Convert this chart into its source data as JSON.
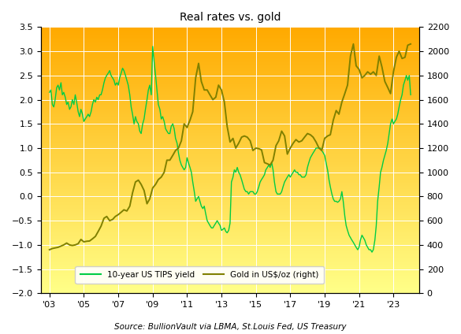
{
  "title": "Real rates vs. gold",
  "source": "Source: BullionVault via LBMA, St.Louis Fed, US Treasury",
  "legend_tips": "10-year US TIPS yield",
  "legend_gold": "Gold in US$/oz (right)",
  "tips_color": "#00cc44",
  "gold_color": "#808000",
  "ylim_left": [
    -2.0,
    3.5
  ],
  "ylim_right": [
    0,
    2200
  ],
  "yticks_left": [
    -2.0,
    -1.5,
    -1.0,
    -0.5,
    0.0,
    0.5,
    1.0,
    1.5,
    2.0,
    2.5,
    3.0,
    3.5
  ],
  "yticks_right": [
    0,
    200,
    400,
    600,
    800,
    1000,
    1200,
    1400,
    1600,
    1800,
    2000,
    2200
  ],
  "xtick_years": [
    2003,
    2005,
    2007,
    2009,
    2011,
    2013,
    2015,
    2017,
    2019,
    2021,
    2023
  ],
  "xtick_labels": [
    "'03",
    "'05",
    "'07",
    "'09",
    "'11",
    "'13",
    "'15",
    "'17",
    "'19",
    "'21",
    "'23"
  ],
  "background_top_color": "#FFAA00",
  "background_bottom_color": "#FFFF88",
  "xmin": 2002.5,
  "xmax": 2024.5,
  "tips_data": [
    [
      2003.0,
      2.15
    ],
    [
      2003.08,
      2.2
    ],
    [
      2003.17,
      1.9
    ],
    [
      2003.25,
      1.85
    ],
    [
      2003.33,
      2.0
    ],
    [
      2003.42,
      2.25
    ],
    [
      2003.5,
      2.3
    ],
    [
      2003.58,
      2.2
    ],
    [
      2003.67,
      2.35
    ],
    [
      2003.75,
      2.1
    ],
    [
      2003.83,
      2.15
    ],
    [
      2003.92,
      2.05
    ],
    [
      2004.0,
      1.9
    ],
    [
      2004.08,
      1.95
    ],
    [
      2004.17,
      1.8
    ],
    [
      2004.25,
      1.85
    ],
    [
      2004.33,
      2.0
    ],
    [
      2004.42,
      1.9
    ],
    [
      2004.5,
      2.1
    ],
    [
      2004.58,
      1.95
    ],
    [
      2004.67,
      1.75
    ],
    [
      2004.75,
      1.65
    ],
    [
      2004.83,
      1.8
    ],
    [
      2004.92,
      1.7
    ],
    [
      2005.0,
      1.55
    ],
    [
      2005.08,
      1.6
    ],
    [
      2005.17,
      1.65
    ],
    [
      2005.25,
      1.7
    ],
    [
      2005.33,
      1.65
    ],
    [
      2005.42,
      1.75
    ],
    [
      2005.5,
      1.9
    ],
    [
      2005.58,
      2.0
    ],
    [
      2005.67,
      1.95
    ],
    [
      2005.75,
      2.05
    ],
    [
      2005.83,
      2.0
    ],
    [
      2005.92,
      2.1
    ],
    [
      2006.0,
      2.1
    ],
    [
      2006.08,
      2.2
    ],
    [
      2006.17,
      2.35
    ],
    [
      2006.25,
      2.45
    ],
    [
      2006.33,
      2.5
    ],
    [
      2006.42,
      2.55
    ],
    [
      2006.5,
      2.6
    ],
    [
      2006.58,
      2.5
    ],
    [
      2006.67,
      2.45
    ],
    [
      2006.75,
      2.4
    ],
    [
      2006.83,
      2.3
    ],
    [
      2006.92,
      2.35
    ],
    [
      2007.0,
      2.3
    ],
    [
      2007.08,
      2.45
    ],
    [
      2007.17,
      2.55
    ],
    [
      2007.25,
      2.65
    ],
    [
      2007.33,
      2.6
    ],
    [
      2007.42,
      2.5
    ],
    [
      2007.5,
      2.4
    ],
    [
      2007.58,
      2.3
    ],
    [
      2007.67,
      2.1
    ],
    [
      2007.75,
      1.85
    ],
    [
      2007.83,
      1.7
    ],
    [
      2007.92,
      1.5
    ],
    [
      2008.0,
      1.65
    ],
    [
      2008.08,
      1.55
    ],
    [
      2008.17,
      1.5
    ],
    [
      2008.25,
      1.35
    ],
    [
      2008.33,
      1.3
    ],
    [
      2008.42,
      1.5
    ],
    [
      2008.5,
      1.6
    ],
    [
      2008.58,
      1.8
    ],
    [
      2008.67,
      2.0
    ],
    [
      2008.75,
      2.2
    ],
    [
      2008.83,
      2.3
    ],
    [
      2008.92,
      2.1
    ],
    [
      2009.0,
      3.1
    ],
    [
      2009.08,
      2.8
    ],
    [
      2009.17,
      2.5
    ],
    [
      2009.25,
      2.2
    ],
    [
      2009.33,
      1.9
    ],
    [
      2009.42,
      1.8
    ],
    [
      2009.5,
      1.6
    ],
    [
      2009.58,
      1.65
    ],
    [
      2009.67,
      1.55
    ],
    [
      2009.75,
      1.4
    ],
    [
      2009.83,
      1.35
    ],
    [
      2009.92,
      1.3
    ],
    [
      2010.0,
      1.3
    ],
    [
      2010.08,
      1.45
    ],
    [
      2010.17,
      1.5
    ],
    [
      2010.25,
      1.4
    ],
    [
      2010.33,
      1.2
    ],
    [
      2010.42,
      1.1
    ],
    [
      2010.5,
      0.9
    ],
    [
      2010.58,
      0.75
    ],
    [
      2010.67,
      0.65
    ],
    [
      2010.75,
      0.6
    ],
    [
      2010.83,
      0.55
    ],
    [
      2010.92,
      0.6
    ],
    [
      2011.0,
      0.8
    ],
    [
      2011.08,
      0.7
    ],
    [
      2011.17,
      0.6
    ],
    [
      2011.25,
      0.5
    ],
    [
      2011.33,
      0.3
    ],
    [
      2011.42,
      0.1
    ],
    [
      2011.5,
      -0.1
    ],
    [
      2011.58,
      -0.05
    ],
    [
      2011.67,
      0.0
    ],
    [
      2011.75,
      -0.1
    ],
    [
      2011.83,
      -0.2
    ],
    [
      2011.92,
      -0.25
    ],
    [
      2012.0,
      -0.2
    ],
    [
      2012.08,
      -0.35
    ],
    [
      2012.17,
      -0.5
    ],
    [
      2012.25,
      -0.55
    ],
    [
      2012.33,
      -0.6
    ],
    [
      2012.42,
      -0.65
    ],
    [
      2012.5,
      -0.65
    ],
    [
      2012.58,
      -0.6
    ],
    [
      2012.67,
      -0.55
    ],
    [
      2012.75,
      -0.5
    ],
    [
      2012.83,
      -0.55
    ],
    [
      2012.92,
      -0.6
    ],
    [
      2013.0,
      -0.7
    ],
    [
      2013.08,
      -0.68
    ],
    [
      2013.17,
      -0.65
    ],
    [
      2013.25,
      -0.72
    ],
    [
      2013.33,
      -0.75
    ],
    [
      2013.42,
      -0.7
    ],
    [
      2013.5,
      -0.55
    ],
    [
      2013.58,
      0.3
    ],
    [
      2013.67,
      0.4
    ],
    [
      2013.75,
      0.55
    ],
    [
      2013.83,
      0.5
    ],
    [
      2013.92,
      0.6
    ],
    [
      2014.0,
      0.5
    ],
    [
      2014.08,
      0.45
    ],
    [
      2014.17,
      0.35
    ],
    [
      2014.25,
      0.25
    ],
    [
      2014.33,
      0.15
    ],
    [
      2014.42,
      0.1
    ],
    [
      2014.5,
      0.1
    ],
    [
      2014.58,
      0.05
    ],
    [
      2014.67,
      0.1
    ],
    [
      2014.75,
      0.1
    ],
    [
      2014.83,
      0.1
    ],
    [
      2014.92,
      0.05
    ],
    [
      2015.0,
      0.05
    ],
    [
      2015.08,
      0.1
    ],
    [
      2015.17,
      0.2
    ],
    [
      2015.25,
      0.3
    ],
    [
      2015.33,
      0.35
    ],
    [
      2015.42,
      0.4
    ],
    [
      2015.5,
      0.45
    ],
    [
      2015.58,
      0.55
    ],
    [
      2015.67,
      0.6
    ],
    [
      2015.75,
      0.65
    ],
    [
      2015.83,
      0.6
    ],
    [
      2015.92,
      0.7
    ],
    [
      2016.0,
      0.55
    ],
    [
      2016.08,
      0.3
    ],
    [
      2016.17,
      0.1
    ],
    [
      2016.25,
      0.05
    ],
    [
      2016.33,
      0.05
    ],
    [
      2016.42,
      0.05
    ],
    [
      2016.5,
      0.1
    ],
    [
      2016.58,
      0.2
    ],
    [
      2016.67,
      0.3
    ],
    [
      2016.75,
      0.35
    ],
    [
      2016.83,
      0.4
    ],
    [
      2016.92,
      0.45
    ],
    [
      2017.0,
      0.4
    ],
    [
      2017.08,
      0.45
    ],
    [
      2017.17,
      0.5
    ],
    [
      2017.25,
      0.55
    ],
    [
      2017.33,
      0.5
    ],
    [
      2017.42,
      0.5
    ],
    [
      2017.5,
      0.45
    ],
    [
      2017.58,
      0.45
    ],
    [
      2017.67,
      0.4
    ],
    [
      2017.75,
      0.4
    ],
    [
      2017.83,
      0.4
    ],
    [
      2017.92,
      0.45
    ],
    [
      2018.0,
      0.6
    ],
    [
      2018.08,
      0.7
    ],
    [
      2018.17,
      0.8
    ],
    [
      2018.25,
      0.85
    ],
    [
      2018.33,
      0.9
    ],
    [
      2018.42,
      0.95
    ],
    [
      2018.5,
      1.0
    ],
    [
      2018.58,
      1.0
    ],
    [
      2018.67,
      1.0
    ],
    [
      2018.75,
      1.0
    ],
    [
      2018.83,
      0.95
    ],
    [
      2018.92,
      0.9
    ],
    [
      2019.0,
      0.85
    ],
    [
      2019.08,
      0.7
    ],
    [
      2019.17,
      0.55
    ],
    [
      2019.25,
      0.35
    ],
    [
      2019.33,
      0.2
    ],
    [
      2019.42,
      0.05
    ],
    [
      2019.5,
      -0.05
    ],
    [
      2019.58,
      -0.1
    ],
    [
      2019.67,
      -0.1
    ],
    [
      2019.75,
      -0.12
    ],
    [
      2019.83,
      -0.1
    ],
    [
      2019.92,
      -0.05
    ],
    [
      2020.0,
      0.1
    ],
    [
      2020.08,
      -0.1
    ],
    [
      2020.17,
      -0.4
    ],
    [
      2020.25,
      -0.6
    ],
    [
      2020.33,
      -0.7
    ],
    [
      2020.42,
      -0.8
    ],
    [
      2020.5,
      -0.85
    ],
    [
      2020.58,
      -0.9
    ],
    [
      2020.67,
      -0.95
    ],
    [
      2020.75,
      -1.0
    ],
    [
      2020.83,
      -1.05
    ],
    [
      2020.92,
      -1.1
    ],
    [
      2021.0,
      -1.05
    ],
    [
      2021.08,
      -0.9
    ],
    [
      2021.17,
      -0.8
    ],
    [
      2021.25,
      -0.85
    ],
    [
      2021.33,
      -0.9
    ],
    [
      2021.42,
      -1.0
    ],
    [
      2021.5,
      -1.05
    ],
    [
      2021.58,
      -1.1
    ],
    [
      2021.67,
      -1.1
    ],
    [
      2021.75,
      -1.15
    ],
    [
      2021.83,
      -1.1
    ],
    [
      2021.92,
      -0.9
    ],
    [
      2022.0,
      -0.6
    ],
    [
      2022.08,
      -0.1
    ],
    [
      2022.17,
      0.2
    ],
    [
      2022.25,
      0.5
    ],
    [
      2022.33,
      0.6
    ],
    [
      2022.42,
      0.75
    ],
    [
      2022.5,
      0.85
    ],
    [
      2022.58,
      0.95
    ],
    [
      2022.67,
      1.1
    ],
    [
      2022.75,
      1.3
    ],
    [
      2022.83,
      1.5
    ],
    [
      2022.92,
      1.6
    ],
    [
      2023.0,
      1.5
    ],
    [
      2023.08,
      1.55
    ],
    [
      2023.17,
      1.6
    ],
    [
      2023.25,
      1.7
    ],
    [
      2023.33,
      1.85
    ],
    [
      2023.42,
      2.0
    ],
    [
      2023.5,
      2.1
    ],
    [
      2023.58,
      2.3
    ],
    [
      2023.67,
      2.4
    ],
    [
      2023.75,
      2.5
    ],
    [
      2023.83,
      2.4
    ],
    [
      2023.92,
      2.5
    ],
    [
      2024.0,
      2.1
    ]
  ],
  "gold_data": [
    [
      2003.0,
      360
    ],
    [
      2003.17,
      370
    ],
    [
      2003.33,
      375
    ],
    [
      2003.5,
      380
    ],
    [
      2003.67,
      390
    ],
    [
      2003.83,
      400
    ],
    [
      2004.0,
      415
    ],
    [
      2004.17,
      400
    ],
    [
      2004.33,
      395
    ],
    [
      2004.5,
      400
    ],
    [
      2004.67,
      410
    ],
    [
      2004.83,
      445
    ],
    [
      2005.0,
      425
    ],
    [
      2005.17,
      430
    ],
    [
      2005.33,
      432
    ],
    [
      2005.5,
      450
    ],
    [
      2005.67,
      470
    ],
    [
      2005.83,
      510
    ],
    [
      2006.0,
      555
    ],
    [
      2006.17,
      620
    ],
    [
      2006.33,
      635
    ],
    [
      2006.5,
      600
    ],
    [
      2006.67,
      610
    ],
    [
      2006.83,
      635
    ],
    [
      2007.0,
      650
    ],
    [
      2007.17,
      670
    ],
    [
      2007.33,
      690
    ],
    [
      2007.5,
      680
    ],
    [
      2007.67,
      720
    ],
    [
      2007.83,
      830
    ],
    [
      2008.0,
      920
    ],
    [
      2008.17,
      935
    ],
    [
      2008.33,
      900
    ],
    [
      2008.5,
      850
    ],
    [
      2008.67,
      740
    ],
    [
      2008.83,
      780
    ],
    [
      2009.0,
      870
    ],
    [
      2009.17,
      900
    ],
    [
      2009.33,
      940
    ],
    [
      2009.5,
      960
    ],
    [
      2009.67,
      1000
    ],
    [
      2009.83,
      1100
    ],
    [
      2010.0,
      1100
    ],
    [
      2010.17,
      1140
    ],
    [
      2010.33,
      1180
    ],
    [
      2010.5,
      1200
    ],
    [
      2010.67,
      1260
    ],
    [
      2010.83,
      1400
    ],
    [
      2011.0,
      1370
    ],
    [
      2011.17,
      1430
    ],
    [
      2011.33,
      1500
    ],
    [
      2011.5,
      1780
    ],
    [
      2011.67,
      1900
    ],
    [
      2011.83,
      1750
    ],
    [
      2012.0,
      1680
    ],
    [
      2012.17,
      1680
    ],
    [
      2012.33,
      1640
    ],
    [
      2012.5,
      1600
    ],
    [
      2012.67,
      1620
    ],
    [
      2012.83,
      1720
    ],
    [
      2013.0,
      1680
    ],
    [
      2013.17,
      1580
    ],
    [
      2013.33,
      1380
    ],
    [
      2013.5,
      1250
    ],
    [
      2013.67,
      1280
    ],
    [
      2013.83,
      1200
    ],
    [
      2014.0,
      1240
    ],
    [
      2014.17,
      1290
    ],
    [
      2014.33,
      1300
    ],
    [
      2014.5,
      1290
    ],
    [
      2014.67,
      1260
    ],
    [
      2014.83,
      1180
    ],
    [
      2015.0,
      1200
    ],
    [
      2015.17,
      1195
    ],
    [
      2015.33,
      1185
    ],
    [
      2015.5,
      1080
    ],
    [
      2015.67,
      1070
    ],
    [
      2015.83,
      1060
    ],
    [
      2016.0,
      1100
    ],
    [
      2016.17,
      1220
    ],
    [
      2016.33,
      1260
    ],
    [
      2016.5,
      1340
    ],
    [
      2016.67,
      1300
    ],
    [
      2016.83,
      1150
    ],
    [
      2017.0,
      1200
    ],
    [
      2017.17,
      1240
    ],
    [
      2017.33,
      1270
    ],
    [
      2017.5,
      1250
    ],
    [
      2017.67,
      1260
    ],
    [
      2017.83,
      1290
    ],
    [
      2018.0,
      1320
    ],
    [
      2018.17,
      1310
    ],
    [
      2018.33,
      1290
    ],
    [
      2018.5,
      1250
    ],
    [
      2018.67,
      1200
    ],
    [
      2018.83,
      1180
    ],
    [
      2019.0,
      1280
    ],
    [
      2019.17,
      1300
    ],
    [
      2019.33,
      1310
    ],
    [
      2019.5,
      1430
    ],
    [
      2019.67,
      1510
    ],
    [
      2019.83,
      1480
    ],
    [
      2020.0,
      1580
    ],
    [
      2020.17,
      1650
    ],
    [
      2020.33,
      1720
    ],
    [
      2020.5,
      1960
    ],
    [
      2020.67,
      2060
    ],
    [
      2020.83,
      1880
    ],
    [
      2021.0,
      1850
    ],
    [
      2021.17,
      1780
    ],
    [
      2021.33,
      1800
    ],
    [
      2021.5,
      1830
    ],
    [
      2021.67,
      1810
    ],
    [
      2021.83,
      1830
    ],
    [
      2022.0,
      1800
    ],
    [
      2022.17,
      1960
    ],
    [
      2022.33,
      1870
    ],
    [
      2022.5,
      1750
    ],
    [
      2022.67,
      1700
    ],
    [
      2022.83,
      1650
    ],
    [
      2023.0,
      1830
    ],
    [
      2023.17,
      1950
    ],
    [
      2023.33,
      2000
    ],
    [
      2023.5,
      1940
    ],
    [
      2023.67,
      1950
    ],
    [
      2023.83,
      2050
    ],
    [
      2024.0,
      2060
    ]
  ]
}
